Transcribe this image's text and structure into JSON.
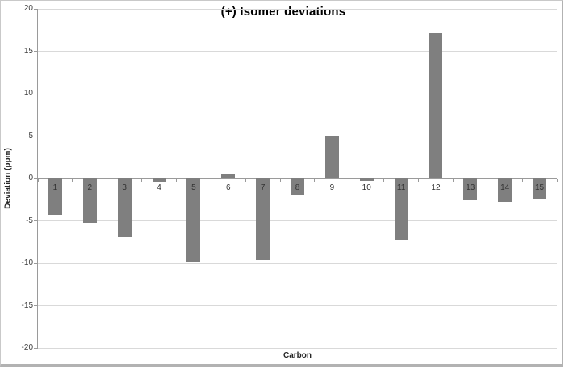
{
  "chart_data": {
    "type": "bar",
    "title": "(+) Isomer deviations",
    "xlabel": "Carbon",
    "ylabel": "Deviation (ppm)",
    "categories": [
      "1",
      "2",
      "3",
      "4",
      "5",
      "6",
      "7",
      "8",
      "9",
      "10",
      "11",
      "12",
      "13",
      "14",
      "15"
    ],
    "values": [
      -4.3,
      -5.2,
      -6.9,
      -0.5,
      -9.8,
      0.6,
      -9.6,
      -2.0,
      5.0,
      -0.3,
      -7.2,
      17.1,
      -2.6,
      -2.8,
      -2.4
    ],
    "ylim": [
      -20,
      20
    ],
    "yticks": [
      20,
      15,
      10,
      5,
      0,
      -5,
      -10,
      -15,
      -20
    ],
    "grid": true,
    "legend": "none",
    "bar_color": "#7f7f7f",
    "gridline_color": "#d9d9d9",
    "axis_color": "#9a9a9a",
    "tick_label_color": "#404040"
  }
}
